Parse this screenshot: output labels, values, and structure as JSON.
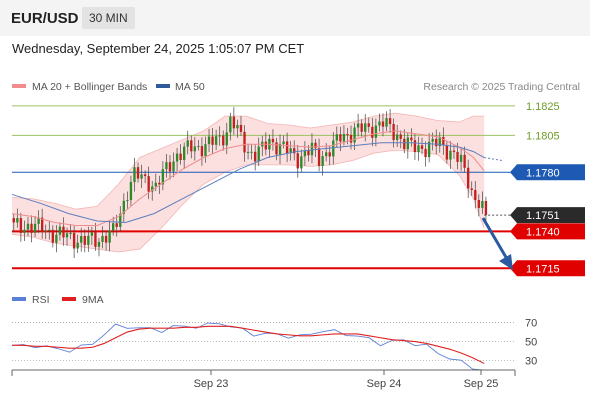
{
  "header": {
    "symbol": "EUR/USD",
    "timeframe": "30 MIN"
  },
  "datetime": "Wednesday, September 24, 2025 1:05:07 PM CET",
  "legend": {
    "bb_label": "MA 20 + Bollinger Bands",
    "ma50_label": "MA 50",
    "bb_color": "#f08c8c",
    "ma50_color": "#2f5b9a",
    "credit": "Research © 2025 Trading Central"
  },
  "rsi_legend": {
    "rsi_label": "RSI",
    "ma_label": "9MA",
    "rsi_color": "#5a7fd6",
    "ma_color": "#e02020"
  },
  "colors": {
    "up": "#2b8a2b",
    "down": "#c32020",
    "resistance": "#9ac261",
    "support": "#e00000",
    "pivot": "#1e5ab4",
    "arrow": "#2b5aa0",
    "last": "#2a2a2a"
  },
  "chart_data": [
    {
      "type": "candlestick",
      "title": "EUR/USD 30 MIN",
      "x_ticks": [
        "Sep 23",
        "Sep 24",
        "Sep 25"
      ],
      "ylim": [
        1.1703,
        1.1833
      ],
      "levels": [
        {
          "label": "1.1825",
          "value": 1.1825,
          "kind": "resistance"
        },
        {
          "label": "1.1805",
          "value": 1.1805,
          "kind": "resistance"
        },
        {
          "label": "1.1780",
          "value": 1.178,
          "kind": "pivot"
        },
        {
          "label": "1.1751",
          "value": 1.1751,
          "kind": "last"
        },
        {
          "label": "1.1740",
          "value": 1.174,
          "kind": "support"
        },
        {
          "label": "1.1715",
          "value": 1.1715,
          "kind": "support"
        }
      ],
      "close_path": [
        [
          0,
          1.1743
        ],
        [
          4,
          1.1744
        ],
        [
          8,
          1.1742
        ],
        [
          12,
          1.1738
        ],
        [
          16,
          1.1736
        ],
        [
          20,
          1.1733
        ],
        [
          24,
          1.1735
        ],
        [
          28,
          1.1739
        ],
        [
          30,
          1.1752
        ],
        [
          32,
          1.1768
        ],
        [
          34,
          1.1778
        ],
        [
          36,
          1.1776
        ],
        [
          38,
          1.1774
        ],
        [
          40,
          1.177
        ],
        [
          42,
          1.1778
        ],
        [
          44,
          1.1786
        ],
        [
          46,
          1.1792
        ],
        [
          48,
          1.1794
        ],
        [
          50,
          1.1797
        ],
        [
          54,
          1.1798
        ],
        [
          56,
          1.18
        ],
        [
          58,
          1.1803
        ],
        [
          60,
          1.1808
        ],
        [
          61,
          1.1815
        ],
        [
          62,
          1.1812
        ],
        [
          64,
          1.1803
        ],
        [
          66,
          1.1795
        ],
        [
          68,
          1.1792
        ],
        [
          70,
          1.1795
        ],
        [
          72,
          1.1802
        ],
        [
          74,
          1.1799
        ],
        [
          76,
          1.1796
        ],
        [
          80,
          1.179
        ],
        [
          84,
          1.1795
        ],
        [
          86,
          1.179
        ],
        [
          90,
          1.1797
        ],
        [
          92,
          1.1804
        ],
        [
          96,
          1.1808
        ],
        [
          100,
          1.181
        ],
        [
          104,
          1.1813
        ],
        [
          108,
          1.1806
        ],
        [
          110,
          1.18
        ],
        [
          112,
          1.1797
        ],
        [
          116,
          1.1797
        ],
        [
          120,
          1.18
        ],
        [
          124,
          1.1792
        ],
        [
          126,
          1.1786
        ],
        [
          128,
          1.1775
        ],
        [
          129,
          1.1768
        ],
        [
          130,
          1.1762
        ],
        [
          131,
          1.176
        ],
        [
          132,
          1.1755
        ],
        [
          133,
          1.1751
        ]
      ],
      "ma20_path": [
        [
          0,
          1.1752
        ],
        [
          6,
          1.175
        ],
        [
          12,
          1.1746
        ],
        [
          18,
          1.1744
        ],
        [
          24,
          1.1744
        ],
        [
          30,
          1.175
        ],
        [
          36,
          1.1762
        ],
        [
          42,
          1.1772
        ],
        [
          48,
          1.1782
        ],
        [
          54,
          1.179
        ],
        [
          60,
          1.1796
        ],
        [
          66,
          1.1799
        ],
        [
          72,
          1.1799
        ],
        [
          78,
          1.1798
        ],
        [
          84,
          1.1797
        ],
        [
          90,
          1.1798
        ],
        [
          96,
          1.1802
        ],
        [
          102,
          1.1806
        ],
        [
          108,
          1.1808
        ],
        [
          114,
          1.1806
        ],
        [
          120,
          1.1804
        ],
        [
          126,
          1.1797
        ],
        [
          130,
          1.179
        ],
        [
          133,
          1.1781
        ]
      ],
      "bb_upper_path": [
        [
          0,
          1.1763
        ],
        [
          6,
          1.1762
        ],
        [
          12,
          1.1759
        ],
        [
          18,
          1.1755
        ],
        [
          24,
          1.1757
        ],
        [
          30,
          1.1772
        ],
        [
          36,
          1.179
        ],
        [
          42,
          1.1796
        ],
        [
          48,
          1.1802
        ],
        [
          54,
          1.1808
        ],
        [
          60,
          1.1818
        ],
        [
          66,
          1.1818
        ],
        [
          72,
          1.1813
        ],
        [
          78,
          1.1812
        ],
        [
          84,
          1.181
        ],
        [
          90,
          1.1812
        ],
        [
          96,
          1.1814
        ],
        [
          102,
          1.1818
        ],
        [
          108,
          1.182
        ],
        [
          114,
          1.1818
        ],
        [
          120,
          1.1815
        ],
        [
          126,
          1.1814
        ],
        [
          130,
          1.1818
        ],
        [
          133,
          1.1818
        ]
      ],
      "bb_lower_path": [
        [
          0,
          1.1738
        ],
        [
          6,
          1.1736
        ],
        [
          12,
          1.1732
        ],
        [
          18,
          1.173
        ],
        [
          24,
          1.1728
        ],
        [
          30,
          1.1726
        ],
        [
          36,
          1.1728
        ],
        [
          42,
          1.1742
        ],
        [
          48,
          1.1758
        ],
        [
          54,
          1.1772
        ],
        [
          60,
          1.178
        ],
        [
          66,
          1.1785
        ],
        [
          72,
          1.1785
        ],
        [
          78,
          1.1785
        ],
        [
          84,
          1.1784
        ],
        [
          90,
          1.1785
        ],
        [
          96,
          1.1788
        ],
        [
          102,
          1.1793
        ],
        [
          108,
          1.1795
        ],
        [
          114,
          1.1794
        ],
        [
          120,
          1.1792
        ],
        [
          126,
          1.1778
        ],
        [
          130,
          1.1762
        ],
        [
          133,
          1.1742
        ]
      ],
      "ma50_path": [
        [
          0,
          1.1765
        ],
        [
          8,
          1.1759
        ],
        [
          16,
          1.1752
        ],
        [
          24,
          1.1747
        ],
        [
          32,
          1.1746
        ],
        [
          40,
          1.1752
        ],
        [
          48,
          1.1762
        ],
        [
          56,
          1.1772
        ],
        [
          64,
          1.1782
        ],
        [
          72,
          1.179
        ],
        [
          80,
          1.1794
        ],
        [
          88,
          1.1796
        ],
        [
          96,
          1.1798
        ],
        [
          104,
          1.18
        ],
        [
          112,
          1.18
        ],
        [
          120,
          1.1799
        ],
        [
          126,
          1.1797
        ],
        [
          130,
          1.1794
        ],
        [
          133,
          1.179
        ],
        [
          138,
          1.1788
        ]
      ]
    },
    {
      "type": "line",
      "title": "RSI",
      "ylim": [
        18,
        80
      ],
      "y_ticks": [
        70,
        50,
        30
      ],
      "series": [
        {
          "name": "RSI",
          "values": [
            46,
            45,
            46,
            44,
            42,
            41,
            44,
            48,
            58,
            66,
            66,
            64,
            63,
            62,
            65,
            66,
            66,
            67,
            70,
            66,
            62,
            58,
            58,
            57,
            56,
            55,
            58,
            62,
            60,
            58,
            56,
            52,
            48,
            50,
            51,
            48,
            45,
            38,
            33,
            28,
            23,
            20
          ]
        },
        {
          "name": "9MA",
          "values": [
            46,
            46,
            45,
            45,
            44,
            43,
            43,
            44,
            48,
            54,
            60,
            63,
            64,
            64,
            64,
            65,
            65,
            66,
            66,
            66,
            64,
            62,
            60,
            58,
            57,
            56,
            56,
            57,
            58,
            58,
            58,
            56,
            54,
            52,
            51,
            50,
            48,
            45,
            42,
            38,
            33,
            27
          ]
        }
      ]
    }
  ]
}
